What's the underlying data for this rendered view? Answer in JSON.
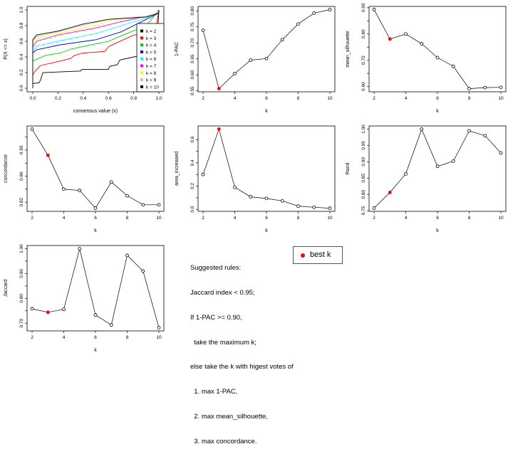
{
  "chart_data": [
    {
      "type": "line",
      "panel": "ecdf",
      "xlabel": "consensus value (x)",
      "ylabel": "P(X <= x)",
      "xlim": [
        0,
        1
      ],
      "ylim": [
        0,
        1
      ],
      "xticks": [
        0.0,
        0.2,
        0.4,
        0.6,
        0.8,
        1.0
      ],
      "xticklabels": [
        "0.0",
        "0.2",
        "0.4",
        "0.6",
        "0.8",
        "1.0"
      ],
      "yticks": [
        0.0,
        0.2,
        0.4,
        0.6,
        0.8,
        1.0
      ],
      "yticklabels": [
        "0.0",
        "0.2",
        "0.4",
        "0.6",
        "0.8",
        "1.0"
      ],
      "legend_placement": "bottom-right",
      "series": [
        {
          "name": "k = 2",
          "color": "#000000",
          "points": [
            [
              0,
              0
            ],
            [
              0,
              0.06
            ],
            [
              0.05,
              0.07
            ],
            [
              0.06,
              0.1
            ],
            [
              0.08,
              0.2
            ],
            [
              0.38,
              0.22
            ],
            [
              0.39,
              0.24
            ],
            [
              0.6,
              0.24
            ],
            [
              0.61,
              0.28
            ],
            [
              0.67,
              0.3
            ],
            [
              0.69,
              0.36
            ],
            [
              0.8,
              0.4
            ],
            [
              0.98,
              0.44
            ],
            [
              1,
              1
            ]
          ]
        },
        {
          "name": "k = 3",
          "color": "#ff0000",
          "points": [
            [
              0,
              0
            ],
            [
              0,
              0.17
            ],
            [
              0.02,
              0.22
            ],
            [
              0.06,
              0.29
            ],
            [
              0.2,
              0.34
            ],
            [
              0.3,
              0.38
            ],
            [
              0.33,
              0.42
            ],
            [
              0.4,
              0.45
            ],
            [
              0.57,
              0.47
            ],
            [
              0.6,
              0.53
            ],
            [
              0.65,
              0.57
            ],
            [
              0.8,
              0.68
            ],
            [
              0.97,
              0.7
            ],
            [
              1,
              1
            ]
          ]
        },
        {
          "name": "k = 4",
          "color": "#00cd00",
          "points": [
            [
              0,
              0
            ],
            [
              0,
              0.35
            ],
            [
              0.03,
              0.37
            ],
            [
              0.1,
              0.42
            ],
            [
              0.22,
              0.45
            ],
            [
              0.3,
              0.5
            ],
            [
              0.6,
              0.6
            ],
            [
              0.7,
              0.67
            ],
            [
              0.9,
              0.8
            ],
            [
              1,
              1
            ]
          ]
        },
        {
          "name": "k = 5",
          "color": "#0000ff",
          "points": [
            [
              0,
              0
            ],
            [
              0,
              0.45
            ],
            [
              0.03,
              0.49
            ],
            [
              0.2,
              0.55
            ],
            [
              0.5,
              0.62
            ],
            [
              0.7,
              0.72
            ],
            [
              0.9,
              0.88
            ],
            [
              1,
              0.96
            ],
            [
              1,
              1
            ]
          ]
        },
        {
          "name": "k = 6",
          "color": "#00ffff",
          "points": [
            [
              0,
              0
            ],
            [
              0,
              0.47
            ],
            [
              0.03,
              0.54
            ],
            [
              0.2,
              0.6
            ],
            [
              0.5,
              0.7
            ],
            [
              0.7,
              0.8
            ],
            [
              0.9,
              0.9
            ],
            [
              1,
              0.97
            ],
            [
              1,
              1
            ]
          ]
        },
        {
          "name": "k = 7",
          "color": "#ff00ff",
          "points": [
            [
              0,
              0
            ],
            [
              0,
              0.53
            ],
            [
              0.03,
              0.6
            ],
            [
              0.2,
              0.68
            ],
            [
              0.5,
              0.77
            ],
            [
              0.7,
              0.85
            ],
            [
              0.9,
              0.92
            ],
            [
              1,
              0.96
            ],
            [
              1,
              1
            ]
          ]
        },
        {
          "name": "k = 8",
          "color": "#ffff00",
          "points": [
            [
              0,
              0
            ],
            [
              0,
              0.56
            ],
            [
              0.03,
              0.63
            ],
            [
              0.2,
              0.7
            ],
            [
              0.5,
              0.8
            ],
            [
              0.6,
              0.87
            ],
            [
              0.9,
              0.92
            ],
            [
              1,
              0.96
            ],
            [
              1,
              1
            ]
          ]
        },
        {
          "name": "k = 9",
          "color": "#bebebe",
          "points": [
            [
              0,
              0
            ],
            [
              0,
              0.6
            ],
            [
              0.03,
              0.66
            ],
            [
              0.2,
              0.72
            ],
            [
              0.4,
              0.8
            ],
            [
              0.6,
              0.88
            ],
            [
              0.9,
              0.92
            ],
            [
              1,
              0.96
            ],
            [
              1,
              1
            ]
          ]
        },
        {
          "name": "k = 10",
          "color": "#000000",
          "points": [
            [
              0,
              0
            ],
            [
              0,
              0.62
            ],
            [
              0.03,
              0.68
            ],
            [
              0.2,
              0.73
            ],
            [
              0.4,
              0.82
            ],
            [
              0.6,
              0.88
            ],
            [
              0.9,
              0.91
            ],
            [
              1,
              0.96
            ],
            [
              1,
              1
            ]
          ]
        }
      ]
    },
    {
      "type": "line",
      "panel": "1-PAC",
      "xlabel": "k",
      "ylabel": "1-PAC",
      "x": [
        2,
        3,
        4,
        5,
        6,
        7,
        8,
        9,
        10
      ],
      "values": [
        0.739,
        0.557,
        0.604,
        0.646,
        0.651,
        0.71,
        0.759,
        0.793,
        0.804
      ],
      "ylim": [
        0.547,
        0.814
      ],
      "yticks": [
        0.55,
        0.6,
        0.65,
        0.7,
        0.75,
        0.8
      ],
      "yticklabels": [
        "0.55",
        "0.60",
        "0.65",
        "0.70",
        "0.75",
        "0.80"
      ],
      "best_k": 3
    },
    {
      "type": "line",
      "panel": "mean_silhouette",
      "xlabel": "k",
      "ylabel": "mean_silhouette",
      "x": [
        2,
        3,
        4,
        5,
        6,
        7,
        8,
        9,
        10
      ],
      "values": [
        0.893,
        0.781,
        0.8,
        0.763,
        0.71,
        0.677,
        0.592,
        0.596,
        0.597
      ],
      "ylim": [
        0.58,
        0.905
      ],
      "yticks": [
        0.6,
        0.65,
        0.7,
        0.75,
        0.8,
        0.85,
        0.9
      ],
      "yticklabels": [
        "0.60",
        "",
        "0.70",
        "",
        "0.80",
        "",
        "0.90"
      ],
      "best_k": 3
    },
    {
      "type": "line",
      "panel": "concordance",
      "xlabel": "k",
      "ylabel": "concordance",
      "x": [
        2,
        3,
        4,
        5,
        6,
        7,
        8,
        9,
        10
      ],
      "values": [
        0.932,
        0.892,
        0.84,
        0.838,
        0.811,
        0.851,
        0.83,
        0.816,
        0.816
      ],
      "ylim": [
        0.806,
        0.937
      ],
      "yticks": [
        0.82,
        0.84,
        0.86,
        0.88,
        0.9,
        0.92
      ],
      "yticklabels": [
        "0.82",
        "",
        "0.86",
        "",
        "0.90",
        ""
      ],
      "best_k": 3
    },
    {
      "type": "line",
      "panel": "area_increased",
      "xlabel": "k",
      "ylabel": "area_increased",
      "x": [
        2,
        3,
        4,
        5,
        6,
        7,
        8,
        9,
        10
      ],
      "values": [
        0.3,
        0.69,
        0.19,
        0.108,
        0.094,
        0.073,
        0.028,
        0.018,
        0.01
      ],
      "ylim": [
        -0.017,
        0.717
      ],
      "yticks": [
        0.0,
        0.1,
        0.2,
        0.3,
        0.4,
        0.5,
        0.6
      ],
      "yticklabels": [
        "0.0",
        "",
        "0.2",
        "",
        "0.4",
        "",
        "0.6"
      ],
      "best_k": 3
    },
    {
      "type": "line",
      "panel": "Rand",
      "xlabel": "k",
      "ylabel": "Rand",
      "x": [
        2,
        3,
        4,
        5,
        6,
        7,
        8,
        9,
        10
      ],
      "values": [
        0.758,
        0.806,
        0.863,
        1.0,
        0.886,
        0.902,
        0.995,
        0.98,
        0.927
      ],
      "ylim": [
        0.748,
        1.01
      ],
      "yticks": [
        0.75,
        0.8,
        0.85,
        0.9,
        0.95,
        1.0
      ],
      "yticklabels": [
        "0.75",
        "0.80",
        "0.85",
        "0.90",
        "0.95",
        "1.00"
      ],
      "best_k": 3
    },
    {
      "type": "line",
      "panel": "Jaccard",
      "xlabel": "k",
      "ylabel": "Jaccard",
      "x": [
        2,
        3,
        4,
        5,
        6,
        7,
        8,
        9,
        10
      ],
      "values": [
        0.758,
        0.744,
        0.756,
        1.0,
        0.733,
        0.693,
        0.973,
        0.91,
        0.682
      ],
      "ylim": [
        0.669,
        1.013
      ],
      "yticks": [
        0.7,
        0.75,
        0.8,
        0.85,
        0.9,
        0.95,
        1.0
      ],
      "yticklabels": [
        "0.70",
        "",
        "0.80",
        "",
        "0.90",
        "",
        "1.00"
      ],
      "best_k": 3
    }
  ],
  "xticks_k": [
    2,
    4,
    6,
    8,
    10
  ],
  "colors": {
    "best_k": "#ff0000",
    "line": "#000000"
  },
  "rules": {
    "lines": [
      "Suggested rules:",
      "Jaccard index < 0.95;",
      "If 1-PAC >= 0.90,",
      "  take the maximum k;",
      "else take the k with higest votes of",
      "  1. max 1-PAC,",
      "  2. max mean_silhouette,",
      "  3. max concordance."
    ]
  },
  "best_k_legend": {
    "label": "best k"
  }
}
